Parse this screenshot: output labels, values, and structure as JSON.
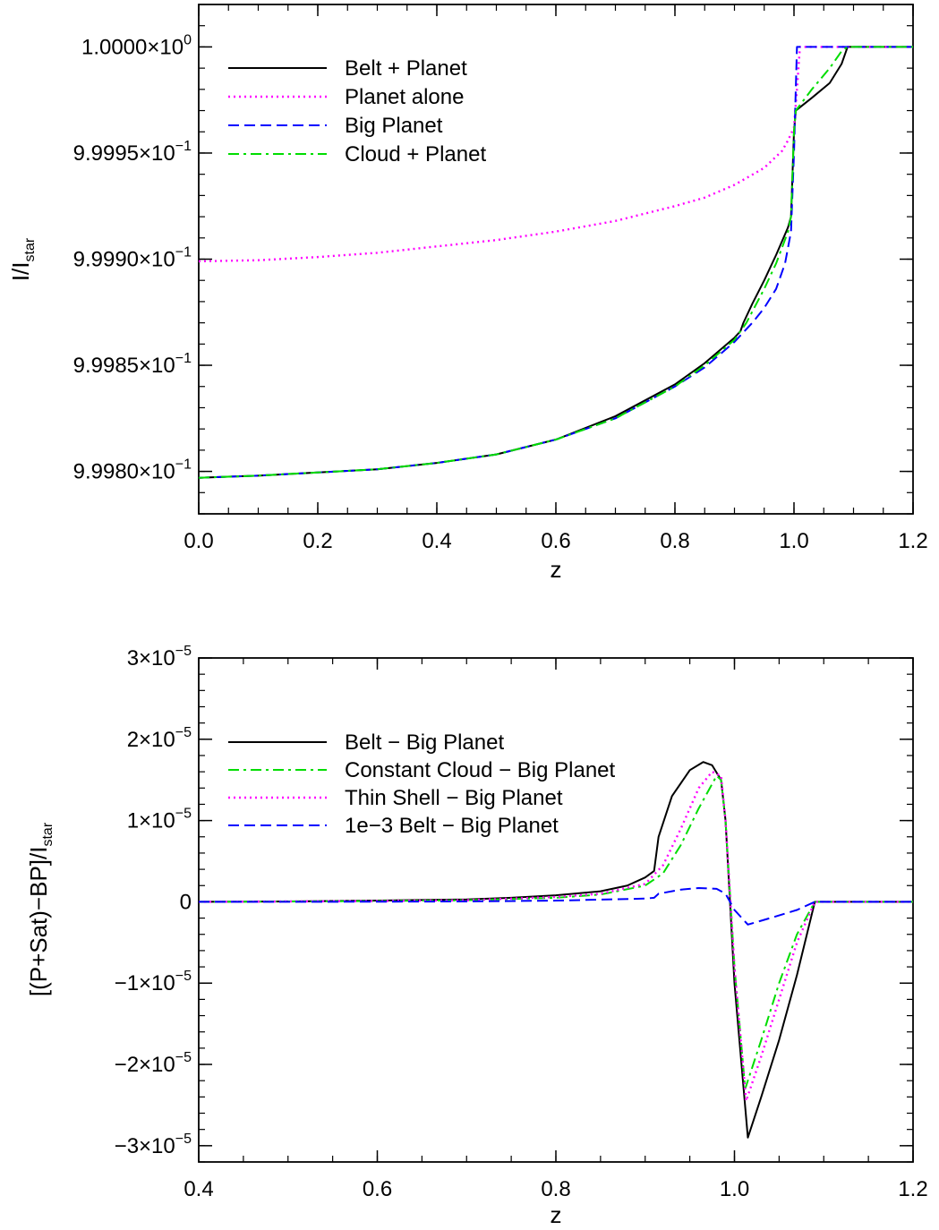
{
  "chart_data": [
    {
      "type": "line",
      "xlabel": "z",
      "ylabel": {
        "main": "I/I",
        "sub": "star"
      },
      "xlim": [
        0.0,
        1.2
      ],
      "ylim": [
        0.99978,
        1.00002
      ],
      "x_ticks": [
        0.0,
        0.2,
        0.4,
        0.6,
        0.8,
        1.0,
        1.2
      ],
      "x_tick_labels": [
        "0.0",
        "0.2",
        "0.4",
        "0.6",
        "0.8",
        "1.0",
        "1.2"
      ],
      "y_ticks": [
        {
          "value": 1.0,
          "mantissa": "1.0000",
          "exp": "0"
        },
        {
          "value": 0.99995,
          "mantissa": "9.9995",
          "exp": "−1"
        },
        {
          "value": 0.9999,
          "mantissa": "9.9990",
          "exp": "−1"
        },
        {
          "value": 0.99985,
          "mantissa": "9.9985",
          "exp": "−1"
        },
        {
          "value": 0.9998,
          "mantissa": "9.9980",
          "exp": "−1"
        }
      ],
      "legend_position": "top-left",
      "series": [
        {
          "name": "Belt + Planet",
          "color": "#000000",
          "dash": "solid",
          "points": [
            [
              0,
              0.999797
            ],
            [
              0.1,
              0.999798
            ],
            [
              0.2,
              0.9997995
            ],
            [
              0.3,
              0.999801
            ],
            [
              0.4,
              0.999804
            ],
            [
              0.5,
              0.999808
            ],
            [
              0.6,
              0.999815
            ],
            [
              0.7,
              0.999826
            ],
            [
              0.8,
              0.999841
            ],
            [
              0.85,
              0.999851
            ],
            [
              0.9,
              0.999863
            ],
            [
              0.91,
              0.999866
            ],
            [
              0.915,
              0.99987
            ],
            [
              0.93,
              0.999879
            ],
            [
              0.95,
              0.99989
            ],
            [
              0.97,
              0.999902
            ],
            [
              0.99,
              0.999915
            ],
            [
              0.995,
              0.99992
            ],
            [
              1.0,
              0.99996
            ],
            [
              1.003,
              0.99997
            ],
            [
              1.03,
              0.999976
            ],
            [
              1.06,
              0.999983
            ],
            [
              1.08,
              0.999992
            ],
            [
              1.09,
              1.0
            ],
            [
              1.2,
              1.0
            ]
          ]
        },
        {
          "name": "Planet alone",
          "color": "#ff00ff",
          "dash": "dotted",
          "points": [
            [
              0,
              0.999899
            ],
            [
              0.1,
              0.9998995
            ],
            [
              0.2,
              0.999901
            ],
            [
              0.3,
              0.999903
            ],
            [
              0.4,
              0.999906
            ],
            [
              0.5,
              0.999909
            ],
            [
              0.6,
              0.999913
            ],
            [
              0.7,
              0.999918
            ],
            [
              0.8,
              0.999925
            ],
            [
              0.85,
              0.999929
            ],
            [
              0.9,
              0.999935
            ],
            [
              0.95,
              0.999943
            ],
            [
              0.98,
              0.999951
            ],
            [
              0.99,
              0.999956
            ],
            [
              1.0,
              0.999962
            ],
            [
              1.005,
              0.99998
            ],
            [
              1.01,
              1.0
            ],
            [
              1.2,
              1.0
            ]
          ]
        },
        {
          "name": "Big Planet",
          "color": "#0000ff",
          "dash": "dashed",
          "points": [
            [
              0,
              0.999797
            ],
            [
              0.1,
              0.999798
            ],
            [
              0.2,
              0.9997995
            ],
            [
              0.3,
              0.999801
            ],
            [
              0.4,
              0.999804
            ],
            [
              0.5,
              0.999808
            ],
            [
              0.6,
              0.999815
            ],
            [
              0.7,
              0.999825
            ],
            [
              0.8,
              0.99984
            ],
            [
              0.85,
              0.999849
            ],
            [
              0.9,
              0.999861
            ],
            [
              0.93,
              0.99987
            ],
            [
              0.95,
              0.999877
            ],
            [
              0.97,
              0.999886
            ],
            [
              0.985,
              0.999898
            ],
            [
              0.995,
              0.999913
            ],
            [
              1.0,
              0.99995
            ],
            [
              1.005,
              1.0
            ],
            [
              1.2,
              1.0
            ]
          ]
        },
        {
          "name": "Cloud + Planet",
          "color": "#00dd00",
          "dash": "dashdot",
          "points": [
            [
              0,
              0.999797
            ],
            [
              0.1,
              0.999798
            ],
            [
              0.2,
              0.9997995
            ],
            [
              0.3,
              0.999801
            ],
            [
              0.4,
              0.999804
            ],
            [
              0.5,
              0.999808
            ],
            [
              0.6,
              0.999815
            ],
            [
              0.7,
              0.999825
            ],
            [
              0.8,
              0.99984
            ],
            [
              0.85,
              0.99985
            ],
            [
              0.9,
              0.999862
            ],
            [
              0.92,
              0.99987
            ],
            [
              0.95,
              0.999886
            ],
            [
              0.97,
              0.999898
            ],
            [
              0.99,
              0.999913
            ],
            [
              0.995,
              0.99992
            ],
            [
              1.0,
              0.99996
            ],
            [
              1.003,
              0.99997
            ],
            [
              1.03,
              0.99998
            ],
            [
              1.06,
              0.99999
            ],
            [
              1.08,
              0.999998
            ],
            [
              1.09,
              1.0
            ],
            [
              1.2,
              1.0
            ]
          ]
        }
      ]
    },
    {
      "type": "line",
      "xlabel": "z",
      "ylabel": {
        "main": "[(P+Sat)−BP]/I",
        "sub": "star"
      },
      "xlim": [
        0.4,
        1.2
      ],
      "ylim": [
        -3.2e-05,
        3e-05
      ],
      "x_ticks": [
        0.4,
        0.6,
        0.8,
        1.0,
        1.2
      ],
      "x_tick_labels": [
        "0.4",
        "0.6",
        "0.8",
        "1.0",
        "1.2"
      ],
      "y_ticks": [
        {
          "value": 3e-05,
          "mantissa": "3",
          "exp": "−5"
        },
        {
          "value": 2e-05,
          "mantissa": "2",
          "exp": "−5"
        },
        {
          "value": 1e-05,
          "mantissa": "1",
          "exp": "−5"
        },
        {
          "value": 0,
          "mantissa": "0",
          "exp": ""
        },
        {
          "value": -1e-05,
          "mantissa": "−1",
          "exp": "−5"
        },
        {
          "value": -2e-05,
          "mantissa": "−2",
          "exp": "−5"
        },
        {
          "value": -3e-05,
          "mantissa": "−3",
          "exp": "−5"
        }
      ],
      "legend_position": "top-left",
      "series": [
        {
          "name": "Belt − Big Planet",
          "color": "#000000",
          "dash": "solid",
          "points": [
            [
              0.4,
              0
            ],
            [
              0.5,
              5e-08
            ],
            [
              0.6,
              1.5e-07
            ],
            [
              0.7,
              3e-07
            ],
            [
              0.75,
              5e-07
            ],
            [
              0.8,
              8e-07
            ],
            [
              0.85,
              1.3e-06
            ],
            [
              0.88,
              2e-06
            ],
            [
              0.9,
              3e-06
            ],
            [
              0.91,
              3.8e-06
            ],
            [
              0.915,
              8e-06
            ],
            [
              0.93,
              1.3e-05
            ],
            [
              0.95,
              1.62e-05
            ],
            [
              0.965,
              1.72e-05
            ],
            [
              0.975,
              1.68e-05
            ],
            [
              0.985,
              1.5e-05
            ],
            [
              0.99,
              1e-05
            ],
            [
              1.0,
              -1e-05
            ],
            [
              1.015,
              -2.9e-05
            ],
            [
              1.03,
              -2.4e-05
            ],
            [
              1.05,
              -1.7e-05
            ],
            [
              1.07,
              -9e-06
            ],
            [
              1.09,
              0
            ],
            [
              1.2,
              0
            ]
          ]
        },
        {
          "name": "Constant Cloud − Big Planet",
          "color": "#00dd00",
          "dash": "dashdot",
          "points": [
            [
              0.4,
              0
            ],
            [
              0.5,
              5e-08
            ],
            [
              0.6,
              1e-07
            ],
            [
              0.7,
              2e-07
            ],
            [
              0.8,
              5e-07
            ],
            [
              0.85,
              9e-07
            ],
            [
              0.9,
              2e-06
            ],
            [
              0.92,
              3.5e-06
            ],
            [
              0.94,
              7e-06
            ],
            [
              0.96,
              1.15e-05
            ],
            [
              0.98,
              1.55e-05
            ],
            [
              0.985,
              1.5e-05
            ],
            [
              0.99,
              1e-05
            ],
            [
              1.0,
              -8e-06
            ],
            [
              1.012,
              -2.3e-05
            ],
            [
              1.03,
              -1.7e-05
            ],
            [
              1.05,
              -1e-05
            ],
            [
              1.07,
              -4e-06
            ],
            [
              1.09,
              0
            ],
            [
              1.2,
              0
            ]
          ]
        },
        {
          "name": "Thin Shell − Big Planet",
          "color": "#ff00ff",
          "dash": "dotted",
          "points": [
            [
              0.4,
              0
            ],
            [
              0.5,
              5e-08
            ],
            [
              0.6,
              1e-07
            ],
            [
              0.7,
              2e-07
            ],
            [
              0.8,
              6e-07
            ],
            [
              0.85,
              1e-06
            ],
            [
              0.9,
              2.2e-06
            ],
            [
              0.92,
              4.5e-06
            ],
            [
              0.94,
              9e-06
            ],
            [
              0.96,
              1.4e-05
            ],
            [
              0.975,
              1.6e-05
            ],
            [
              0.985,
              1.55e-05
            ],
            [
              0.99,
              1e-05
            ],
            [
              1.0,
              -8e-06
            ],
            [
              1.013,
              -2.45e-05
            ],
            [
              1.03,
              -1.9e-05
            ],
            [
              1.05,
              -1.2e-05
            ],
            [
              1.07,
              -5e-06
            ],
            [
              1.09,
              0
            ],
            [
              1.2,
              0
            ]
          ]
        },
        {
          "name": "1e−3 Belt − Big Planet",
          "color": "#0000ff",
          "dash": "dashed",
          "points": [
            [
              0.4,
              0
            ],
            [
              0.5,
              0
            ],
            [
              0.6,
              2e-08
            ],
            [
              0.7,
              5e-08
            ],
            [
              0.8,
              1.5e-07
            ],
            [
              0.9,
              4e-07
            ],
            [
              0.91,
              5e-07
            ],
            [
              0.915,
              1e-06
            ],
            [
              0.94,
              1.5e-06
            ],
            [
              0.96,
              1.7e-06
            ],
            [
              0.98,
              1.6e-06
            ],
            [
              0.99,
              1e-06
            ],
            [
              1.0,
              -1e-06
            ],
            [
              1.015,
              -2.8e-06
            ],
            [
              1.04,
              -2e-06
            ],
            [
              1.07,
              -1e-06
            ],
            [
              1.09,
              0
            ],
            [
              1.2,
              0
            ]
          ]
        }
      ]
    }
  ]
}
